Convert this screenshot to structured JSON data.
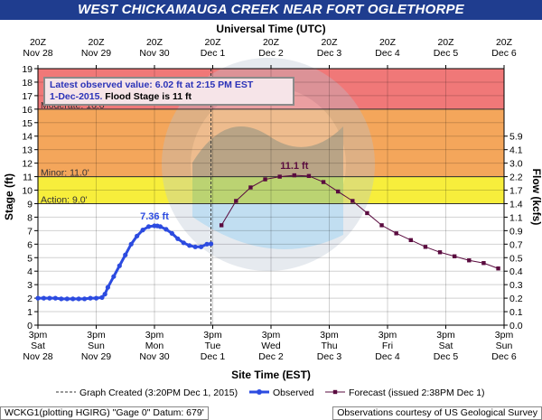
{
  "title": "WEST CHICKAMAUGA CREEK NEAR FORT OGLETHORPE",
  "top_axis_label": "Universal Time (UTC)",
  "bottom_axis_label": "Site Time (EST)",
  "left_axis_label": "Stage (ft)",
  "right_axis_label": "Flow (kcfs)",
  "latest": {
    "line1": "Latest observed value: 6.02 ft at 2:15 PM EST",
    "line2_date": "1-Dec-2015.",
    "line2_rest": "Flood Stage is 11 ft"
  },
  "legend": {
    "graph_created": "Graph Created (3:20PM Dec 1, 2015)",
    "observed": "Observed",
    "forecast": "Forecast (issued 2:38PM Dec 1)"
  },
  "footer": {
    "left": "WCKG1(plotting HGIRG) \"Gage 0\" Datum: 679'",
    "right": "Observations courtesy of US Geological Survey"
  },
  "colors": {
    "title_bg": "#1f3d8f",
    "major": "#f07878",
    "moderate": "#f4a65b",
    "minor": "#f7ee3c",
    "action": "#f9f9a8",
    "observed": "#2c4be0",
    "forecast": "#5a0b3f"
  },
  "chart_data": {
    "type": "line",
    "ylim": [
      0,
      19
    ],
    "yticks": [
      0,
      1,
      2,
      3,
      4,
      5,
      6,
      7,
      8,
      9,
      10,
      11,
      12,
      13,
      14,
      15,
      16,
      17,
      18,
      19
    ],
    "xlim": [
      0,
      8
    ],
    "x_unit_note": "x in days since 3pm Sat Nov 28",
    "bottom_ticks": [
      {
        "x": 0,
        "line1": "3pm",
        "line2": "Sat",
        "line3": "Nov 28"
      },
      {
        "x": 1,
        "line1": "3pm",
        "line2": "Sun",
        "line3": "Nov 29"
      },
      {
        "x": 2,
        "line1": "3pm",
        "line2": "Mon",
        "line3": "Nov 30"
      },
      {
        "x": 3,
        "line1": "3pm",
        "line2": "Tue",
        "line3": "Dec 1"
      },
      {
        "x": 4,
        "line1": "3pm",
        "line2": "Wed",
        "line3": "Dec 2"
      },
      {
        "x": 5,
        "line1": "3pm",
        "line2": "Thu",
        "line3": "Dec 3"
      },
      {
        "x": 6,
        "line1": "3pm",
        "line2": "Fri",
        "line3": "Dec 4"
      },
      {
        "x": 7,
        "line1": "3pm",
        "line2": "Sat",
        "line3": "Dec 5"
      },
      {
        "x": 8,
        "line1": "3pm",
        "line2": "Sun",
        "line3": "Dec 6"
      }
    ],
    "top_ticks": [
      {
        "x": 0,
        "line1": "20Z",
        "line2": "Nov 28"
      },
      {
        "x": 1,
        "line1": "20Z",
        "line2": "Nov 29"
      },
      {
        "x": 2,
        "line1": "20Z",
        "line2": "Nov 30"
      },
      {
        "x": 3,
        "line1": "20Z",
        "line2": "Dec 1"
      },
      {
        "x": 4,
        "line1": "20Z",
        "line2": "Dec 2"
      },
      {
        "x": 5,
        "line1": "20Z",
        "line2": "Dec 3"
      },
      {
        "x": 6,
        "line1": "20Z",
        "line2": "Dec 4"
      },
      {
        "x": 7,
        "line1": "20Z",
        "line2": "Dec 5"
      },
      {
        "x": 8,
        "line1": "20Z",
        "line2": "Dec 6"
      }
    ],
    "flow_ticks": [
      {
        "stage": 0,
        "label": "0.0"
      },
      {
        "stage": 1,
        "label": "0.1"
      },
      {
        "stage": 2,
        "label": "0.2"
      },
      {
        "stage": 3,
        "label": "0.3"
      },
      {
        "stage": 4,
        "label": "0.4"
      },
      {
        "stage": 5,
        "label": "0.5"
      },
      {
        "stage": 6,
        "label": "0.7"
      },
      {
        "stage": 7,
        "label": "0.9"
      },
      {
        "stage": 8,
        "label": "1.1"
      },
      {
        "stage": 9,
        "label": "1.4"
      },
      {
        "stage": 10,
        "label": "1.7"
      },
      {
        "stage": 11,
        "label": "2.2"
      },
      {
        "stage": 12,
        "label": "3.0"
      },
      {
        "stage": 13,
        "label": "4.1"
      },
      {
        "stage": 14,
        "label": "5.9"
      }
    ],
    "bands": [
      {
        "name": "Major",
        "from": 16,
        "to": 19,
        "label": ""
      },
      {
        "name": "Moderate",
        "from": 11,
        "to": 16,
        "label": "Moderate: 16.0'"
      },
      {
        "name": "Minor",
        "from": 9,
        "to": 11,
        "label": "Minor: 11.0'"
      },
      {
        "name": "Action",
        "from": 0,
        "to": 9,
        "label": "Action: 9.0'"
      }
    ],
    "graph_created_x": 2.97,
    "series": [
      {
        "name": "Observed",
        "x": [
          0.0,
          0.1,
          0.2,
          0.3,
          0.4,
          0.5,
          0.6,
          0.7,
          0.8,
          0.9,
          1.0,
          1.1,
          1.15,
          1.2,
          1.3,
          1.4,
          1.5,
          1.6,
          1.7,
          1.8,
          1.9,
          2.0,
          2.05,
          2.1,
          2.2,
          2.3,
          2.4,
          2.5,
          2.6,
          2.7,
          2.8,
          2.9,
          2.97
        ],
        "y": [
          2.0,
          2.0,
          2.0,
          2.0,
          1.95,
          1.95,
          1.95,
          1.95,
          1.95,
          2.0,
          2.0,
          2.05,
          2.3,
          2.8,
          3.6,
          4.4,
          5.2,
          6.0,
          6.6,
          7.05,
          7.3,
          7.36,
          7.35,
          7.3,
          7.1,
          6.8,
          6.4,
          6.1,
          5.9,
          5.8,
          5.8,
          6.0,
          6.02
        ]
      },
      {
        "name": "Forecast",
        "x": [
          3.15,
          3.4,
          3.65,
          3.9,
          4.15,
          4.4,
          4.65,
          4.9,
          5.15,
          5.4,
          5.65,
          5.9,
          6.15,
          6.4,
          6.65,
          6.9,
          7.15,
          7.4,
          7.65,
          7.9
        ],
        "y": [
          7.4,
          9.2,
          10.2,
          10.8,
          11.0,
          11.1,
          11.05,
          10.6,
          9.9,
          9.2,
          8.3,
          7.4,
          6.8,
          6.3,
          5.8,
          5.4,
          5.1,
          4.8,
          4.6,
          4.2
        ]
      }
    ],
    "annotations": [
      {
        "x": 2.0,
        "y": 7.36,
        "text": "7.36 ft",
        "series": "Observed"
      },
      {
        "x": 4.4,
        "y": 11.1,
        "text": "11.1 ft",
        "series": "Forecast"
      }
    ]
  }
}
